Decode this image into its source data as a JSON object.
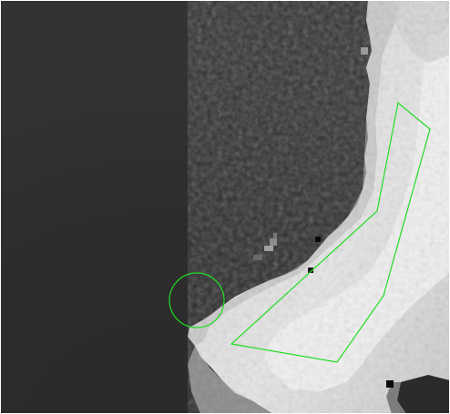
{
  "image": {
    "kind": "grayscale-medical-scan-crop",
    "tissue_colors": {
      "background_dark": "#2e2e2e",
      "background_darker": "#272727",
      "tissue_light": "#e6e6e6",
      "tissue_mid": "#bdbdbd",
      "tissue_bright": "#f3f3f3",
      "speck_black": "#0a0a0a"
    }
  },
  "annotations": [
    {
      "type": "circle",
      "label_icon": "circle-roi-annotation",
      "color": "#22dd22"
    },
    {
      "type": "polygon",
      "label_icon": "polygon-roi-annotation",
      "color": "#22dd22"
    }
  ]
}
